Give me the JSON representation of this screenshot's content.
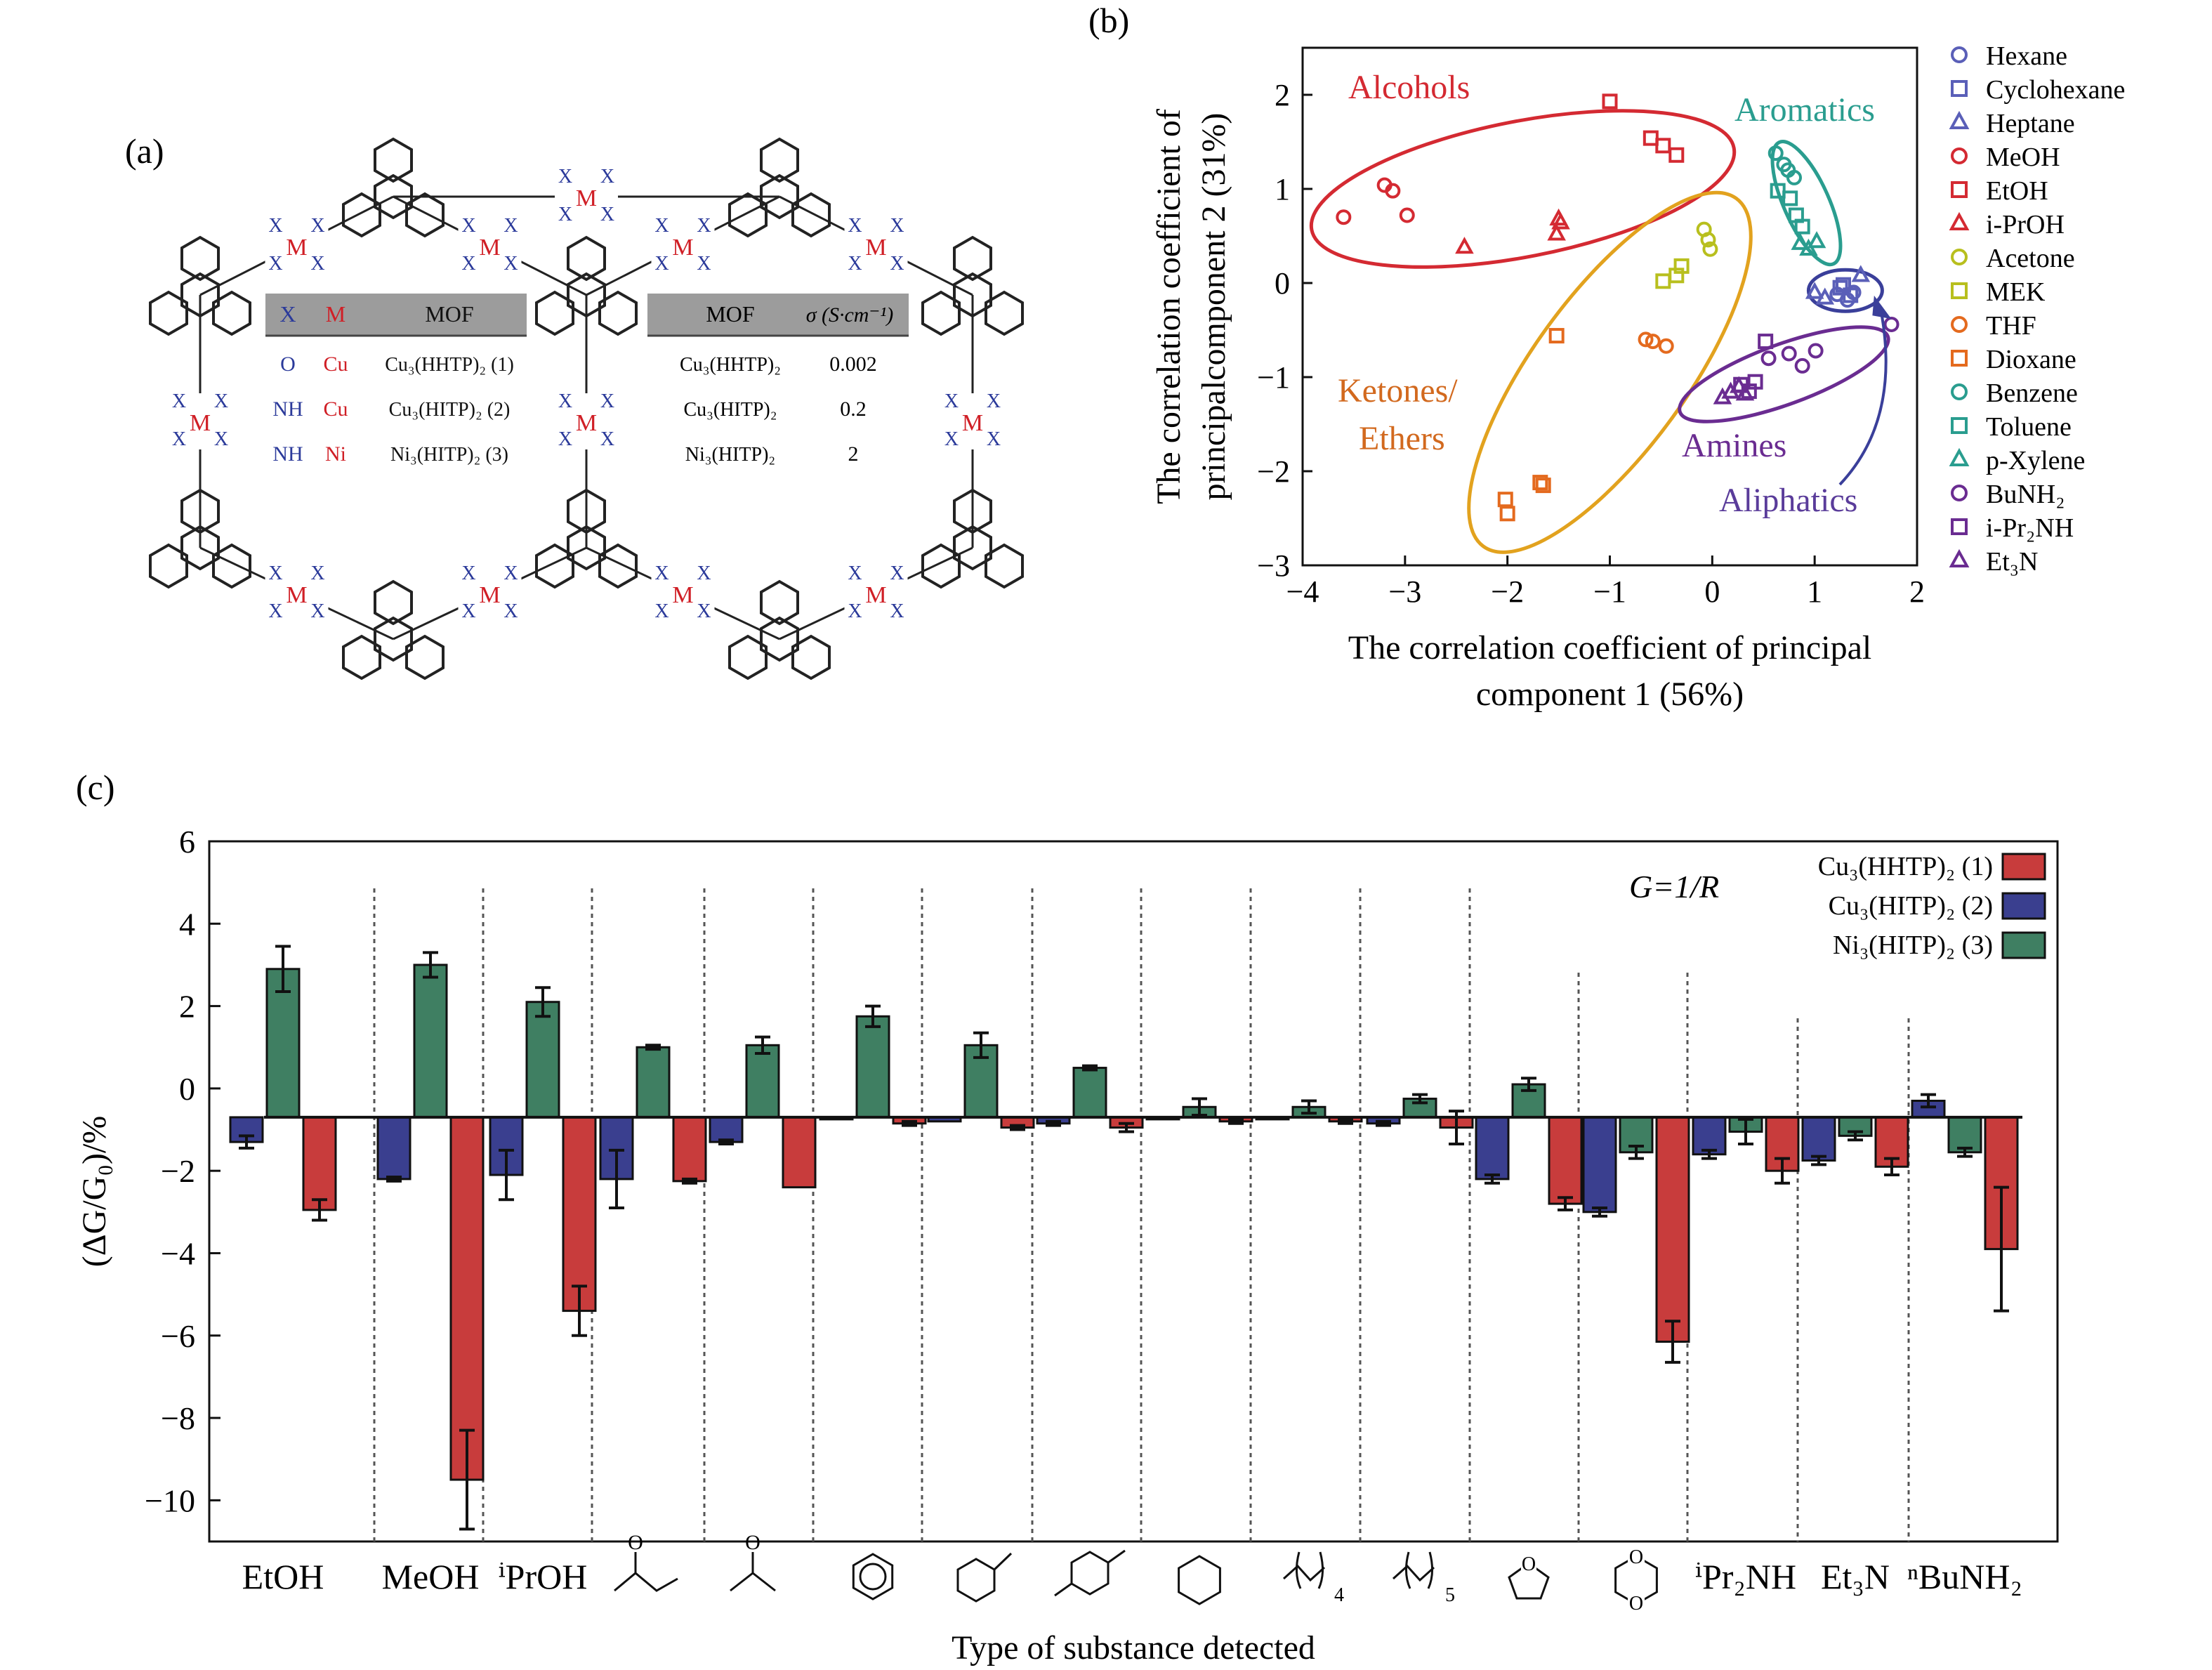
{
  "panel_labels": {
    "a": "(a)",
    "b": "(b)",
    "c": "(c)"
  },
  "panel_a": {
    "structure_labels": {
      "X": "X",
      "M": "M"
    },
    "table_left": {
      "headers": [
        "X",
        "M",
        "MOF"
      ],
      "rows": [
        [
          "O",
          "Cu",
          "Cu₃(HHTP)₂ (1)"
        ],
        [
          "NH",
          "Cu",
          "Cu₃(HITP)₂ (2)"
        ],
        [
          "NH",
          "Ni",
          "Ni₃(HITP)₂ (3)"
        ]
      ]
    },
    "table_right": {
      "headers": [
        "MOF",
        "σ (S·cm⁻¹)"
      ],
      "rows": [
        [
          "Cu₃(HHTP)₂",
          "0.002"
        ],
        [
          "Cu₃(HITP)₂",
          "0.2"
        ],
        [
          "Ni₃(HITP)₂",
          "2"
        ]
      ]
    },
    "colors": {
      "X": "#2b3a9a",
      "M": "#d01f26"
    }
  },
  "chart_data": [
    {
      "type": "scatter",
      "xlabel": [
        "The correlation coefficient of principal",
        "component 1 (56%)"
      ],
      "ylabel": [
        "The correlation coefficient of",
        "principalcomponent 2 (31%)"
      ],
      "xlim": [
        -4,
        2
      ],
      "ylim": [
        -3,
        2.5
      ],
      "xticks": [
        "−4",
        "−3",
        "−2",
        "−1",
        "0",
        "1",
        "2"
      ],
      "yticks": [
        "−3",
        "−2",
        "−1",
        "0",
        "1",
        "2"
      ],
      "legend_position": "right",
      "group_labels": [
        {
          "text": "Alcohols",
          "color": "#d42a32"
        },
        {
          "text": "Aromatics",
          "color": "#2a9d8f"
        },
        {
          "text": "Ketones/",
          "color": "#d2691e"
        },
        {
          "text": "Ethers",
          "color": "#d2691e"
        },
        {
          "text": "Amines",
          "color": "#6a2c91"
        },
        {
          "text": "Aliphatics",
          "color": "#5a3c9a"
        }
      ],
      "ellipses": [
        {
          "name": "Alcohols",
          "color": "#d42a32",
          "cx": -1.85,
          "cy": 1.0,
          "rx": 2.1,
          "ry": 0.72,
          "angle_deg": 11
        },
        {
          "name": "Aromatics",
          "color": "#2a9d8f",
          "cx": 0.92,
          "cy": 0.85,
          "rx": 0.65,
          "ry": 0.24,
          "angle_deg": -66
        },
        {
          "name": "Ketones/Ethers",
          "color": "#e2a21e",
          "cx": -1.0,
          "cy": -0.95,
          "rx": 2.1,
          "ry": 0.82,
          "angle_deg": 54
        },
        {
          "name": "Amines",
          "color": "#6a2c91",
          "cx": 0.7,
          "cy": -0.97,
          "rx": 1.08,
          "ry": 0.32,
          "angle_deg": 20
        },
        {
          "name": "Aliphatics",
          "color": "#3a3f9a",
          "cx": 1.3,
          "cy": -0.08,
          "rx": 0.36,
          "ry": 0.22,
          "angle_deg": 0
        }
      ],
      "series": [
        {
          "name": "Hexane",
          "marker": "circle",
          "color": "#5a5fb8",
          "x": [
            1.22,
            1.32,
            1.38
          ],
          "y": [
            -0.12,
            -0.18,
            -0.1
          ]
        },
        {
          "name": "Cyclohexane",
          "marker": "square",
          "color": "#5a5fb8",
          "x": [
            1.25,
            1.35,
            1.28
          ],
          "y": [
            -0.05,
            -0.13,
            -0.02
          ]
        },
        {
          "name": "Heptane",
          "marker": "triangle",
          "color": "#5a5fb8",
          "x": [
            1.0,
            1.1,
            1.45
          ],
          "y": [
            -0.1,
            -0.16,
            0.08
          ]
        },
        {
          "name": "MeOH",
          "marker": "circle",
          "color": "#d42a32",
          "x": [
            -3.6,
            -3.2,
            -3.12,
            -2.98
          ],
          "y": [
            0.7,
            1.04,
            0.98,
            0.72
          ]
        },
        {
          "name": "EtOH",
          "marker": "square",
          "color": "#d42a32",
          "x": [
            -1.0,
            -0.6,
            -0.48,
            -0.35
          ],
          "y": [
            1.93,
            1.54,
            1.46,
            1.36
          ]
        },
        {
          "name": "i-PrOH",
          "marker": "triangle",
          "color": "#d42a32",
          "x": [
            -2.42,
            -1.5,
            -1.48,
            -1.52
          ],
          "y": [
            0.38,
            0.68,
            0.64,
            0.52
          ]
        },
        {
          "name": "Acetone",
          "marker": "circle",
          "color": "#b8bf1e",
          "x": [
            -0.08,
            -0.04,
            -0.02
          ],
          "y": [
            0.57,
            0.46,
            0.36
          ]
        },
        {
          "name": "MEK",
          "marker": "square",
          "color": "#b8bf1e",
          "x": [
            -0.48,
            -0.35,
            -0.3
          ],
          "y": [
            0.02,
            0.08,
            0.18
          ]
        },
        {
          "name": "THF",
          "marker": "circle",
          "color": "#e46a1e",
          "x": [
            -0.65,
            -0.58,
            -0.45
          ],
          "y": [
            -0.6,
            -0.62,
            -0.67
          ]
        },
        {
          "name": "Dioxane",
          "marker": "square",
          "color": "#e46a1e",
          "x": [
            -2.02,
            -2.0,
            -1.68,
            -1.65,
            -1.52
          ],
          "y": [
            -2.3,
            -2.45,
            -2.12,
            -2.15,
            -0.56
          ]
        },
        {
          "name": "Benzene",
          "marker": "circle",
          "color": "#2a9d8f",
          "x": [
            0.62,
            0.7,
            0.74,
            0.8
          ],
          "y": [
            1.38,
            1.26,
            1.2,
            1.12
          ]
        },
        {
          "name": "Toluene",
          "marker": "square",
          "color": "#2a9d8f",
          "x": [
            0.64,
            0.76,
            0.82,
            0.88
          ],
          "y": [
            0.98,
            0.9,
            0.72,
            0.6
          ]
        },
        {
          "name": "p-Xylene",
          "marker": "triangle",
          "color": "#2a9d8f",
          "x": [
            0.86,
            0.94,
            1.02
          ],
          "y": [
            0.42,
            0.36,
            0.44
          ]
        },
        {
          "name": "BuNH₂",
          "marker": "circle",
          "color": "#6a2c91",
          "x": [
            0.55,
            0.75,
            0.88,
            1.01,
            1.75
          ],
          "y": [
            -0.8,
            -0.75,
            -0.88,
            -0.72,
            -0.44
          ]
        },
        {
          "name": "i-Pr₂NH",
          "marker": "square",
          "color": "#6a2c91",
          "x": [
            0.28,
            0.36,
            0.42,
            0.52
          ],
          "y": [
            -1.08,
            -1.15,
            -1.05,
            -0.62
          ]
        },
        {
          "name": "Et₃N",
          "marker": "triangle",
          "color": "#6a2c91",
          "x": [
            0.1,
            0.18,
            0.26,
            0.32
          ],
          "y": [
            -1.22,
            -1.16,
            -1.1,
            -1.18
          ]
        }
      ],
      "legend": [
        "Hexane",
        "Cyclohexane",
        "Heptane",
        "MeOH",
        "EtOH",
        "i-PrOH",
        "Acetone",
        "MEK",
        "THF",
        "Dioxane",
        "Benzene",
        "Toluene",
        "p-Xylene",
        "BuNH₂",
        "i-Pr₂NH",
        "Et₃N"
      ]
    },
    {
      "type": "bar",
      "xlabel": "Type of substance detected",
      "ylabel": "(ΔG/G₀)/%",
      "ylim": [
        -11,
        6
      ],
      "baseline": -0.7,
      "yticks": [
        "6",
        "4",
        "2",
        "0",
        "−2",
        "−4",
        "−6",
        "−8",
        "−10"
      ],
      "annotation": "G=1/R",
      "legend_position": "top-right",
      "categories": [
        "EtOH",
        "MeOH",
        "ⁱPrOH",
        "ketone-structure",
        "acetone-structure",
        "benzene-structure",
        "toluene-structure",
        "p-xylene-structure",
        "cyclohexane-structure",
        "hexane-structure",
        "heptane-structure",
        "thf-structure",
        "dioxane-structure",
        "ⁱPr₂NH",
        "Et₃N",
        "ⁿBuNH₂"
      ],
      "text_category_labels": [
        "EtOH",
        "MeOH",
        "ⁱPrOH",
        "ⁱPr₂NH",
        "Et₃N",
        "ⁿBuNH₂"
      ],
      "structure_subscripts": [
        "4",
        "5"
      ],
      "series": [
        {
          "name": "Cu₃(HITP)₂ (2)",
          "color": "#3a3f8f",
          "values": [
            -1.3,
            -2.2,
            -2.1,
            -2.2,
            -1.3,
            -0.75,
            -0.8,
            -0.85,
            -0.75,
            -0.75,
            -0.85,
            -2.2,
            -3.0,
            -1.6,
            -1.75,
            -0.3
          ],
          "errors": [
            0.15,
            0.05,
            0.6,
            0.7,
            0.05,
            0.0,
            0.0,
            0.05,
            0.0,
            0.0,
            0.05,
            0.1,
            0.1,
            0.1,
            0.1,
            0.15
          ]
        },
        {
          "name": "Ni₃(HITP)₂ (3)",
          "color": "#3f7f62",
          "values": [
            2.9,
            3.0,
            2.1,
            1.0,
            1.05,
            1.75,
            1.05,
            0.5,
            -0.45,
            -0.45,
            -0.25,
            0.1,
            -1.55,
            -1.05,
            -1.15,
            -1.55
          ],
          "errors": [
            0.55,
            0.3,
            0.35,
            0.05,
            0.2,
            0.25,
            0.3,
            0.05,
            0.2,
            0.15,
            0.1,
            0.15,
            0.15,
            0.3,
            0.1,
            0.1
          ]
        },
        {
          "name": "Cu₃(HHTP)₂ (1)",
          "color": "#c83c3c",
          "values": [
            -2.95,
            -9.5,
            -5.4,
            -2.25,
            -2.4,
            -0.85,
            -0.95,
            -0.95,
            -0.8,
            -0.8,
            -0.95,
            -2.8,
            -6.15,
            -2.0,
            -1.9,
            -3.9
          ],
          "errors": [
            0.25,
            1.2,
            0.6,
            0.05,
            0.0,
            0.05,
            0.05,
            0.1,
            0.05,
            0.05,
            0.4,
            0.15,
            0.5,
            0.3,
            0.2,
            1.5
          ]
        }
      ],
      "legend": [
        "Cu₃(HHTP)₂ (1)",
        "Cu₃(HITP)₂ (2)",
        "Ni₃(HITP)₂ (3)"
      ]
    }
  ]
}
